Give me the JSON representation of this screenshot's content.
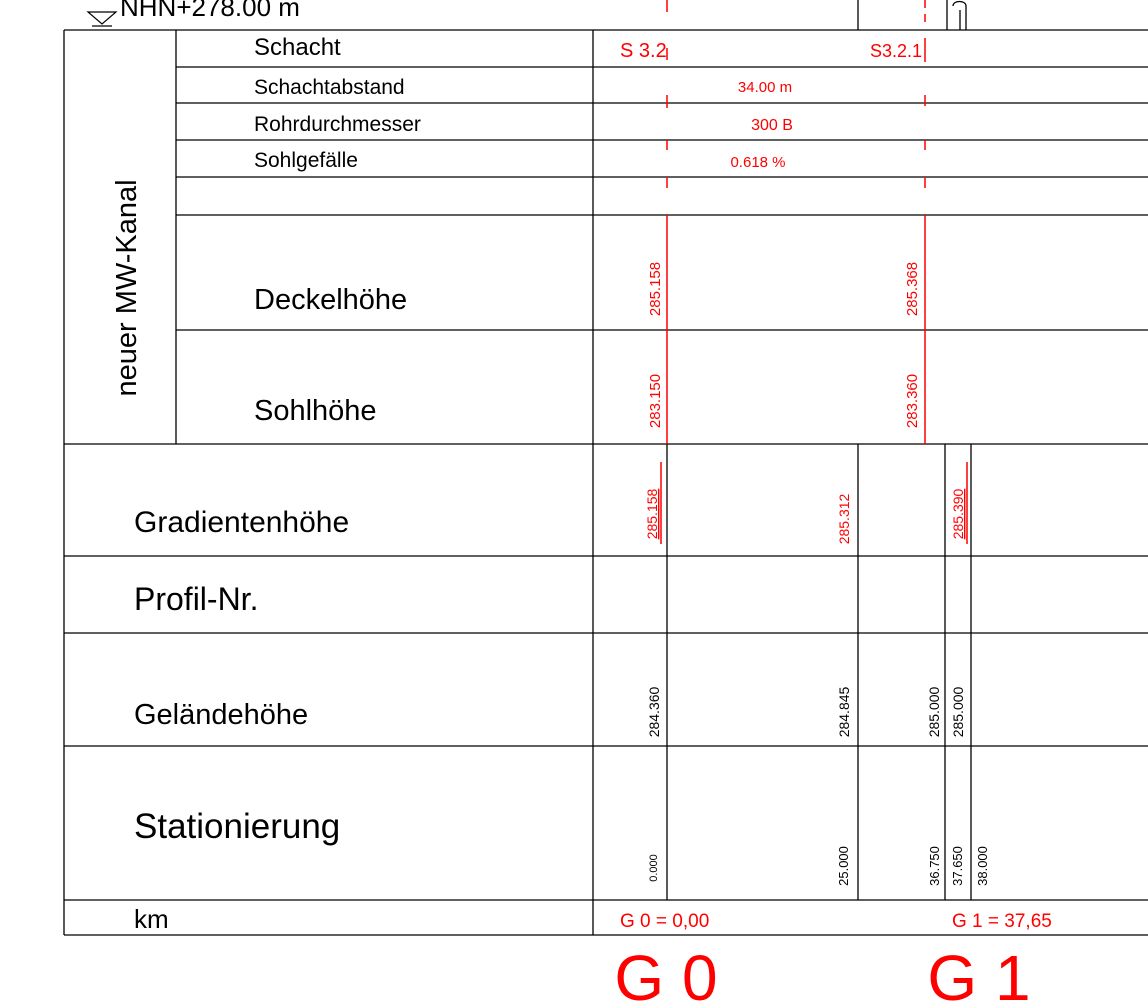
{
  "colors": {
    "line": "#000000",
    "accent": "#ff0000",
    "background": "#ffffff"
  },
  "datum": "NHN+278.00 m",
  "datum_icon": "datum-triangle-icon",
  "group_label": "neuer MW-Kanal",
  "rows": {
    "schacht": "Schacht",
    "schachtabstand": "Schachtabstand",
    "rohrdurchmesser": "Rohrdurchmesser",
    "sohlgefaelle": "Sohlgefälle",
    "deckelhoehe": "Deckelhöhe",
    "sohlhoehe": "Sohlhöhe",
    "gradientenhoehe": "Gradientenhöhe",
    "profil_nr": "Profil-Nr.",
    "gelaendehoehe": "Geländehöhe",
    "stationierung": "Stationierung",
    "km": "km"
  },
  "manholes": [
    {
      "id": "S 3.2",
      "deckelhoehe": "285.158",
      "sohlhoehe": "283.150"
    },
    {
      "id": "S3.2.1",
      "deckelhoehe": "285.368",
      "sohlhoehe": "283.360"
    }
  ],
  "segment": {
    "schachtabstand": "34.00 m",
    "rohrdurchmesser": "300 B",
    "sohlgefaelle": "0.618 %"
  },
  "gradientenhoehe": [
    "285.158",
    "285.312",
    "285.390"
  ],
  "gelaendehoehe": [
    "284.360",
    "284.845",
    "285.000",
    "285.000"
  ],
  "stationierung": [
    "0.000",
    "25.000",
    "36.750",
    "37.650",
    "38.000"
  ],
  "km_marks": [
    "G 0 = 0,00",
    "G 1 = 37,65"
  ],
  "big_marks": [
    "G 0",
    "G 1"
  ]
}
